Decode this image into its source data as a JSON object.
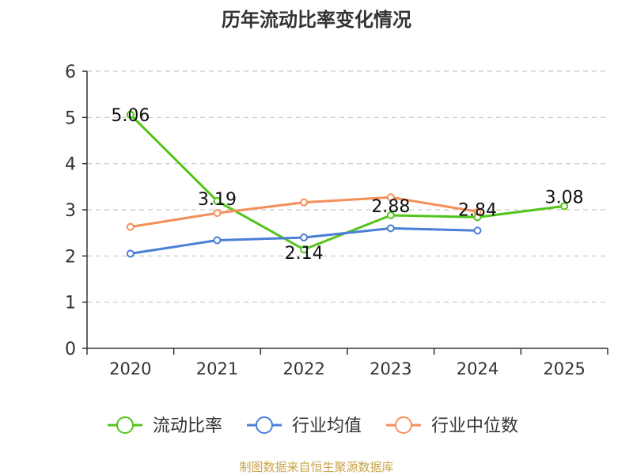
{
  "chart_data": {
    "type": "line",
    "title": "历年流动比率变化情况",
    "source": "制图数据来自恒生聚源数据库",
    "categories": [
      "2020",
      "2021",
      "2022",
      "2023",
      "2024",
      "2025"
    ],
    "ylim": [
      0,
      6
    ],
    "yticks": [
      0,
      1,
      2,
      3,
      4,
      5,
      6
    ],
    "grid": true,
    "legend_position": "bottom",
    "series": [
      {
        "name": "流动比率",
        "color": "#52c41a",
        "values": [
          5.06,
          3.19,
          2.14,
          2.88,
          2.84,
          3.08
        ],
        "labels": [
          "5.06",
          "3.19",
          "2.14",
          "2.88",
          "2.84",
          "3.08"
        ]
      },
      {
        "name": "行业均值",
        "color": "#4a7fd6",
        "values": [
          2.05,
          2.34,
          2.4,
          2.6,
          2.55,
          null
        ],
        "labels": []
      },
      {
        "name": "行业中位数",
        "color": "#f58f5a",
        "values": [
          2.63,
          2.93,
          3.16,
          3.27,
          2.96,
          null
        ],
        "labels": []
      }
    ]
  }
}
